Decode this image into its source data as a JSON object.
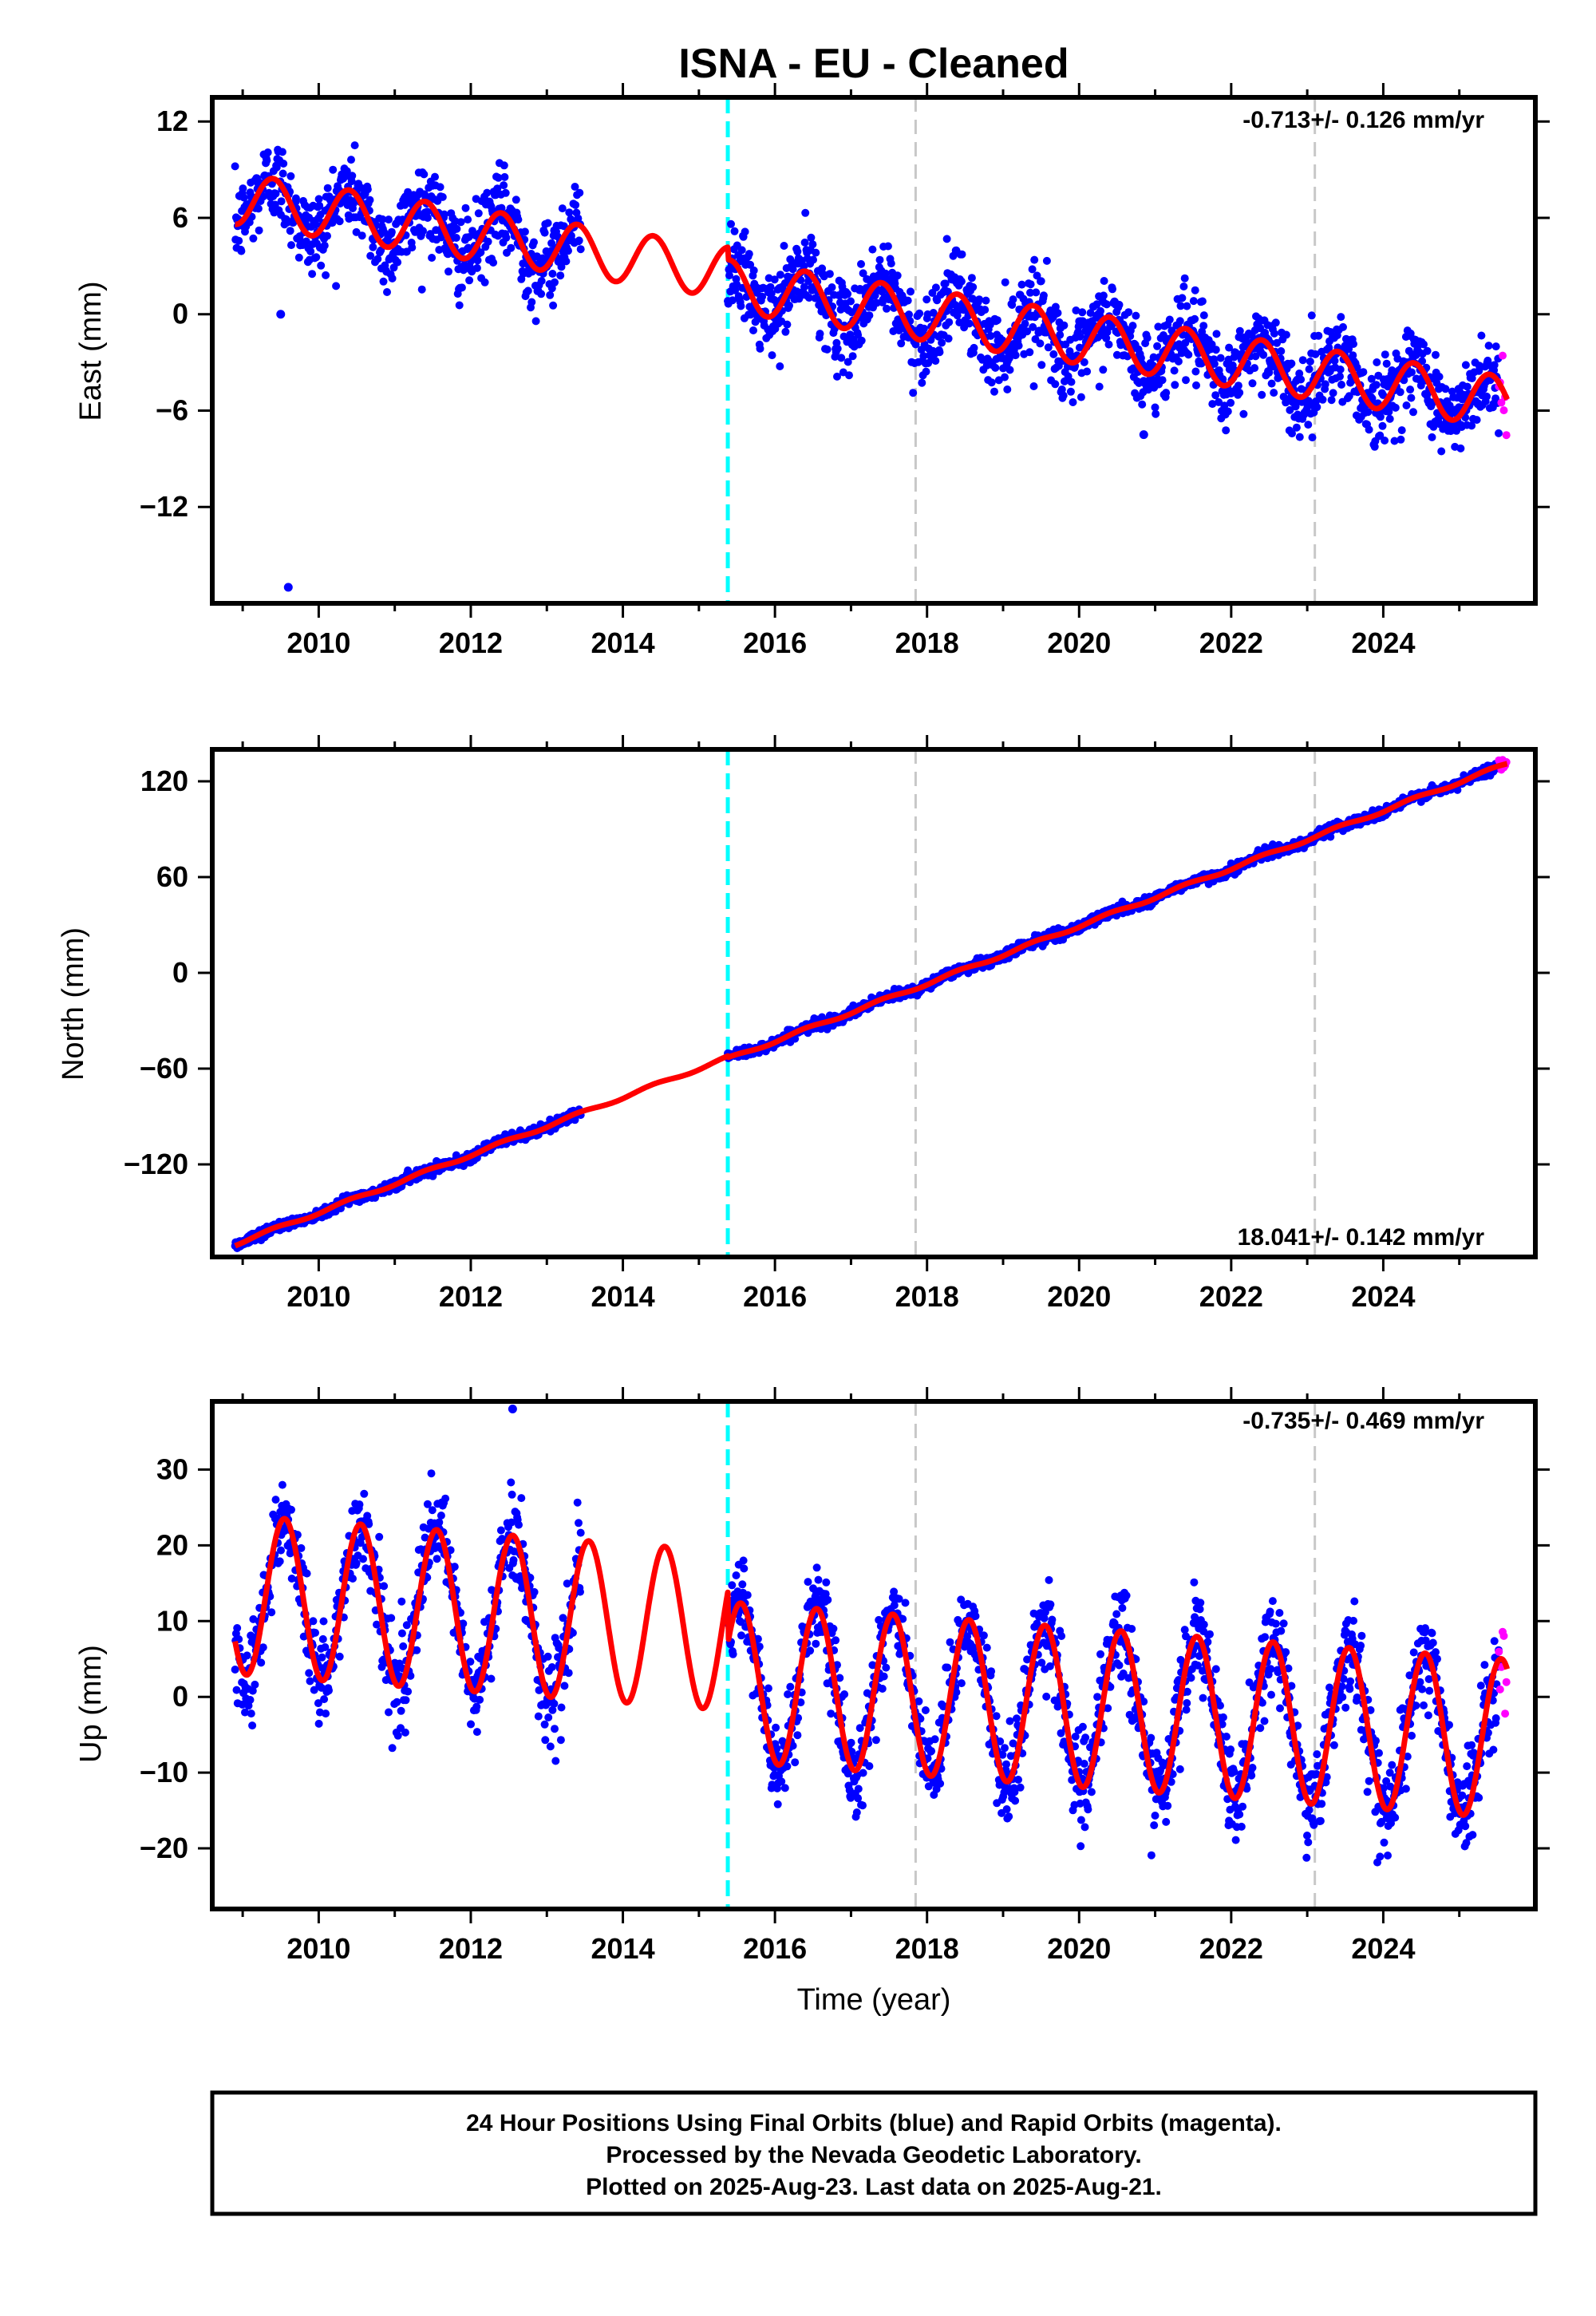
{
  "title": "ISNA  - EU - Cleaned",
  "xlabel": "Time (year)",
  "colors": {
    "final_orbits": "#0000ff",
    "rapid_orbits": "#ff00ff",
    "model": "#ff0000",
    "antenna_change": "#00ffff",
    "equipment_change": "#c8c8c8"
  },
  "footer": {
    "lines": [
      "24 Hour Positions Using Final Orbits (blue) and Rapid Orbits (magenta).",
      "Processed by the Nevada Geodetic Laboratory.",
      "Plotted on 2025-Aug-23. Last data on 2025-Aug-21."
    ]
  },
  "chart_data": [
    {
      "type": "scatter",
      "component": "east",
      "ylabel": "East (mm)",
      "xlim": [
        2008.6,
        2026.0
      ],
      "ylim": [
        -18,
        13.5
      ],
      "xticks": [
        2010,
        2012,
        2014,
        2016,
        2018,
        2020,
        2022,
        2024
      ],
      "yticks": [
        12,
        6,
        0,
        -6,
        -12
      ],
      "rate_label": "-0.713+/- 0.126 mm/yr",
      "rate_position": "top-right",
      "series": [
        {
          "role": "final orbits (blue)",
          "segments": [
            [
              2008.9,
              2013.45
            ],
            [
              2015.38,
              2025.52
            ]
          ]
        },
        {
          "role": "rapid orbits (magenta)",
          "segments": [
            [
              2025.52,
              2025.63
            ]
          ]
        },
        {
          "role": "model fit (red)",
          "offsets": [
            [
              2008.9,
              7.2
            ],
            [
              2015.38,
              1.8
            ]
          ],
          "velocity_mm_per_yr": -0.713,
          "annual_amplitude": 1.6,
          "scatter_sigma": 1.3
        }
      ],
      "outliers": [
        {
          "x": 2009.5,
          "y": 0
        },
        {
          "x": 2009.6,
          "y": -17
        },
        {
          "x": 2020.85,
          "y": -7.5
        }
      ],
      "vertical_lines": [
        {
          "x": 2015.38,
          "style": "dashed",
          "color": "cyan"
        },
        {
          "x": 2017.85,
          "style": "dashed",
          "color": "gray"
        },
        {
          "x": 2023.1,
          "style": "dashed",
          "color": "gray"
        }
      ]
    },
    {
      "type": "scatter",
      "component": "north",
      "ylabel": "North (mm)",
      "xlim": [
        2008.6,
        2026.0
      ],
      "ylim": [
        -178,
        140
      ],
      "xticks": [
        2010,
        2012,
        2014,
        2016,
        2018,
        2020,
        2022,
        2024
      ],
      "yticks": [
        120,
        60,
        0,
        -60,
        -120
      ],
      "rate_label": "18.041+/- 0.142 mm/yr",
      "rate_position": "bottom-right",
      "series": [
        {
          "role": "final orbits (blue)",
          "segments": [
            [
              2008.9,
              2013.45
            ],
            [
              2015.38,
              2025.52
            ]
          ]
        },
        {
          "role": "rapid orbits (magenta)",
          "segments": [
            [
              2025.52,
              2025.63
            ]
          ]
        },
        {
          "role": "model fit (red)",
          "offsets": [
            [
              2008.9,
              -170
            ],
            [
              2015.38,
              -54
            ]
          ],
          "velocity_mm_per_yr": 18.041,
          "annual_amplitude": 1.0,
          "scatter_sigma": 1.6
        }
      ],
      "outliers": [],
      "vertical_lines": [
        {
          "x": 2015.38,
          "style": "dashed",
          "color": "cyan"
        },
        {
          "x": 2017.85,
          "style": "dashed",
          "color": "gray"
        },
        {
          "x": 2023.1,
          "style": "dashed",
          "color": "gray"
        }
      ]
    },
    {
      "type": "scatter",
      "component": "up",
      "ylabel": "Up (mm)",
      "xlim": [
        2008.6,
        2026.0
      ],
      "ylim": [
        -28,
        39
      ],
      "xticks": [
        2010,
        2012,
        2014,
        2016,
        2018,
        2020,
        2022,
        2024
      ],
      "yticks": [
        30,
        20,
        10,
        0,
        -10,
        -20
      ],
      "rate_label": "-0.735+/- 0.469 mm/yr",
      "rate_position": "top-right",
      "series": [
        {
          "role": "final orbits (blue)",
          "segments": [
            [
              2008.9,
              2013.45
            ],
            [
              2015.38,
              2025.52
            ]
          ]
        },
        {
          "role": "rapid orbits (magenta)",
          "segments": [
            [
              2025.52,
              2025.63
            ]
          ]
        },
        {
          "role": "model fit (red)",
          "offsets": [
            [
              2008.9,
              13.5
            ],
            [
              2015.38,
              2.0
            ]
          ],
          "velocity_mm_per_yr": -0.735,
          "annual_amplitude": 10.5,
          "scatter_sigma": 3.0
        }
      ],
      "outliers": [
        {
          "x": 2012.55,
          "y": 38
        }
      ],
      "vertical_lines": [
        {
          "x": 2015.38,
          "style": "dashed",
          "color": "cyan"
        },
        {
          "x": 2017.85,
          "style": "dashed",
          "color": "gray"
        },
        {
          "x": 2023.1,
          "style": "dashed",
          "color": "gray"
        }
      ]
    }
  ]
}
